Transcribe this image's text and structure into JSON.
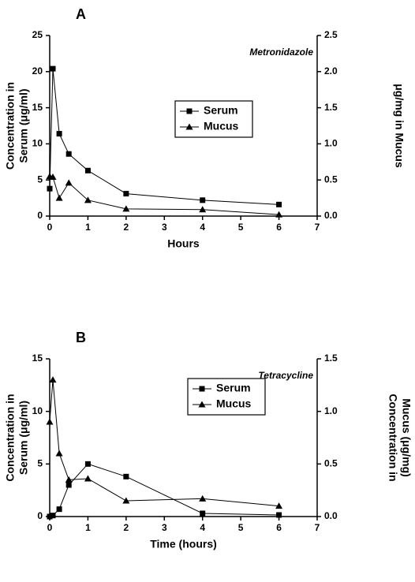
{
  "chart_data": [
    {
      "type": "line",
      "title": "A",
      "annotation": "Metronidazole",
      "xlabel": "Hours",
      "ylabel": [
        "Concentration in",
        "Serum (μg/ml)"
      ],
      "y2label": [
        "μg/mg in Mucus"
      ],
      "legend": "center",
      "x": [
        0,
        0.083,
        0.25,
        0.5,
        1,
        2,
        4,
        6
      ],
      "series": [
        {
          "name": "Serum",
          "color": "#000000",
          "marker": "square",
          "values": [
            3.8,
            20.4,
            11.4,
            8.6,
            6.3,
            3.1,
            2.2,
            1.6
          ]
        },
        {
          "name": "Mucus",
          "color": "#000000",
          "marker": "triangle",
          "axis": "y2",
          "values": [
            0.55,
            0.54,
            0.25,
            0.46,
            0.22,
            0.1,
            0.09,
            0.02
          ]
        }
      ],
      "xlim": [
        0,
        7
      ],
      "xticks": [
        0,
        1,
        2,
        3,
        4,
        5,
        6,
        7
      ],
      "ylim": [
        0,
        25
      ],
      "yticks": [
        0,
        5,
        10,
        15,
        20,
        25
      ],
      "y2lim": [
        0,
        2.5
      ],
      "y2ticks": [
        {
          "value": 0,
          "label": "0.0"
        },
        0.5,
        {
          "value": 1,
          "label": "1.0"
        },
        1.5,
        {
          "value": 2,
          "label": "2.0"
        },
        2.5
      ]
    },
    {
      "type": "line",
      "title": "B",
      "annotation": "Tetracycline",
      "xlabel": "Time (hours)",
      "ylabel": [
        "Concentration in",
        "Serum (μg/ml)"
      ],
      "y2label": [
        "Concentration in",
        "Mucus (μg/mg)"
      ],
      "legend": "center",
      "x": [
        0,
        0.083,
        0.25,
        0.5,
        1,
        2,
        4,
        6
      ],
      "series": [
        {
          "name": "Serum",
          "color": "#000000",
          "marker": "square",
          "values": [
            0,
            0.1,
            0.7,
            3.0,
            5.0,
            3.8,
            0.3,
            0.15
          ]
        },
        {
          "name": "Mucus",
          "color": "#000000",
          "marker": "triangle",
          "axis": "y2",
          "values": [
            0.9,
            1.3,
            0.6,
            0.35,
            0.36,
            0.15,
            0.17,
            0.1
          ]
        }
      ],
      "xlim": [
        0,
        7
      ],
      "xticks": [
        0,
        1,
        2,
        3,
        4,
        5,
        6,
        7
      ],
      "ylim": [
        0,
        15
      ],
      "yticks": [
        0,
        5,
        10,
        15
      ],
      "y2lim": [
        0,
        1.5
      ],
      "y2ticks": [
        {
          "value": 0,
          "label": "0.0"
        },
        0.5,
        {
          "value": 1,
          "label": "1.0"
        },
        1.5
      ]
    }
  ]
}
